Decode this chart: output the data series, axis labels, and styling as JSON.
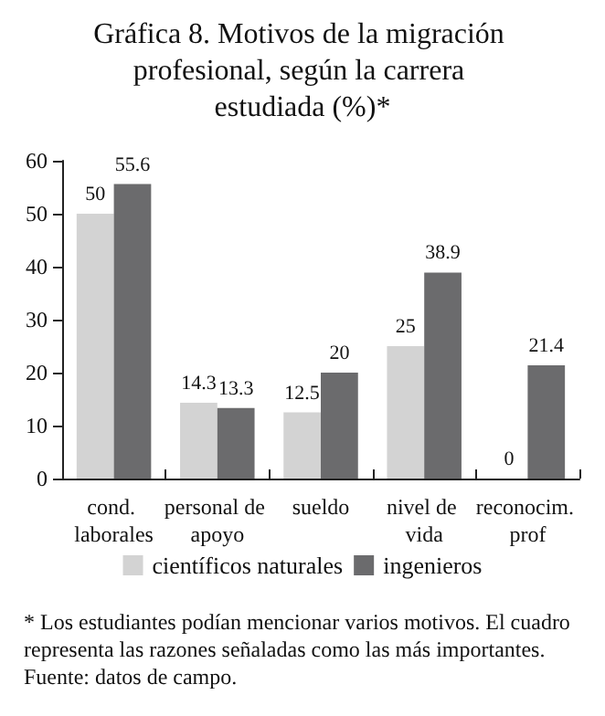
{
  "chart_data": {
    "type": "bar",
    "title": "Gráfica 8. Motivos de la migración profesional, según la carrera estudiada (%)*",
    "categories": [
      "cond. laborales",
      "personal de apoyo",
      "sueldo",
      "nivel de vida",
      "reconocim. prof"
    ],
    "series": [
      {
        "name": "científicos naturales",
        "color": "#d3d3d3",
        "values": [
          50,
          14.3,
          12.5,
          25,
          0
        ]
      },
      {
        "name": "ingenieros",
        "color": "#6b6b6d",
        "values": [
          55.6,
          13.3,
          20,
          38.9,
          21.4
        ]
      }
    ],
    "ylim": [
      0,
      60
    ],
    "yticks": [
      0,
      10,
      20,
      30,
      40,
      50,
      60
    ],
    "grid": false,
    "legend": "bottom",
    "data_labels": true,
    "annotations": [
      "* Los estudiantes podían mencionar varios motivos. El cuadro representa las razones señaladas como las más importantes. Fuente: datos de campo."
    ]
  }
}
